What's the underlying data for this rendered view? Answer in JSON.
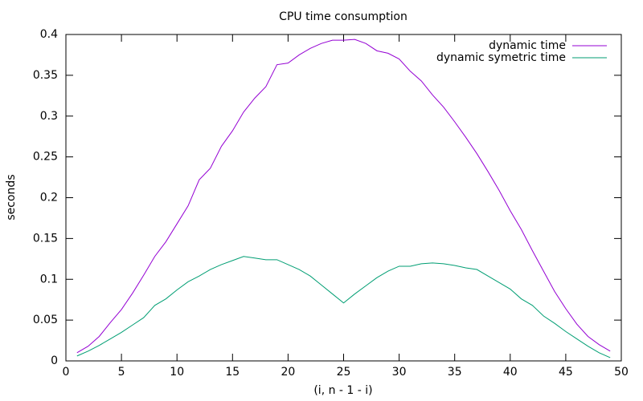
{
  "chart_data": {
    "type": "line",
    "title": "CPU time consumption",
    "x_label": "(i, n - 1 - i)",
    "y_label": "seconds",
    "x": [
      1,
      2,
      3,
      4,
      5,
      6,
      7,
      8,
      9,
      10,
      11,
      12,
      13,
      14,
      15,
      16,
      17,
      18,
      19,
      20,
      21,
      22,
      23,
      24,
      25,
      26,
      27,
      28,
      29,
      30,
      31,
      32,
      33,
      34,
      35,
      36,
      37,
      38,
      39,
      40,
      41,
      42,
      43,
      44,
      45,
      46,
      47,
      48,
      49
    ],
    "series": [
      {
        "name": "dynamic time",
        "color": "#9400d3",
        "values": [
          0.01,
          0.018,
          0.03,
          0.047,
          0.063,
          0.083,
          0.105,
          0.128,
          0.146,
          0.168,
          0.19,
          0.222,
          0.236,
          0.263,
          0.282,
          0.305,
          0.322,
          0.336,
          0.363,
          0.365,
          0.375,
          0.383,
          0.389,
          0.393,
          0.393,
          0.394,
          0.389,
          0.38,
          0.377,
          0.37,
          0.355,
          0.343,
          0.326,
          0.311,
          0.293,
          0.274,
          0.254,
          0.232,
          0.209,
          0.184,
          0.161,
          0.135,
          0.11,
          0.085,
          0.064,
          0.045,
          0.03,
          0.02,
          0.012
        ]
      },
      {
        "name": "dynamic symetric time",
        "color": "#009e73",
        "values": [
          0.006,
          0.012,
          0.019,
          0.027,
          0.035,
          0.044,
          0.053,
          0.068,
          0.076,
          0.087,
          0.097,
          0.104,
          0.112,
          0.118,
          0.123,
          0.128,
          0.126,
          0.124,
          0.124,
          0.118,
          0.112,
          0.104,
          0.093,
          0.082,
          0.071,
          0.082,
          0.092,
          0.102,
          0.11,
          0.116,
          0.116,
          0.119,
          0.12,
          0.119,
          0.117,
          0.114,
          0.112,
          0.104,
          0.096,
          0.088,
          0.076,
          0.068,
          0.055,
          0.046,
          0.036,
          0.027,
          0.018,
          0.01,
          0.004
        ]
      }
    ],
    "xlim": [
      0,
      50
    ],
    "xticks": [
      0,
      5,
      10,
      15,
      20,
      25,
      30,
      35,
      40,
      45,
      50
    ],
    "ylim": [
      0,
      0.4
    ],
    "yticks": [
      0,
      0.05,
      0.1,
      0.15,
      0.2,
      0.25,
      0.3,
      0.35,
      0.4
    ],
    "legend": "top-right",
    "grid": false
  }
}
